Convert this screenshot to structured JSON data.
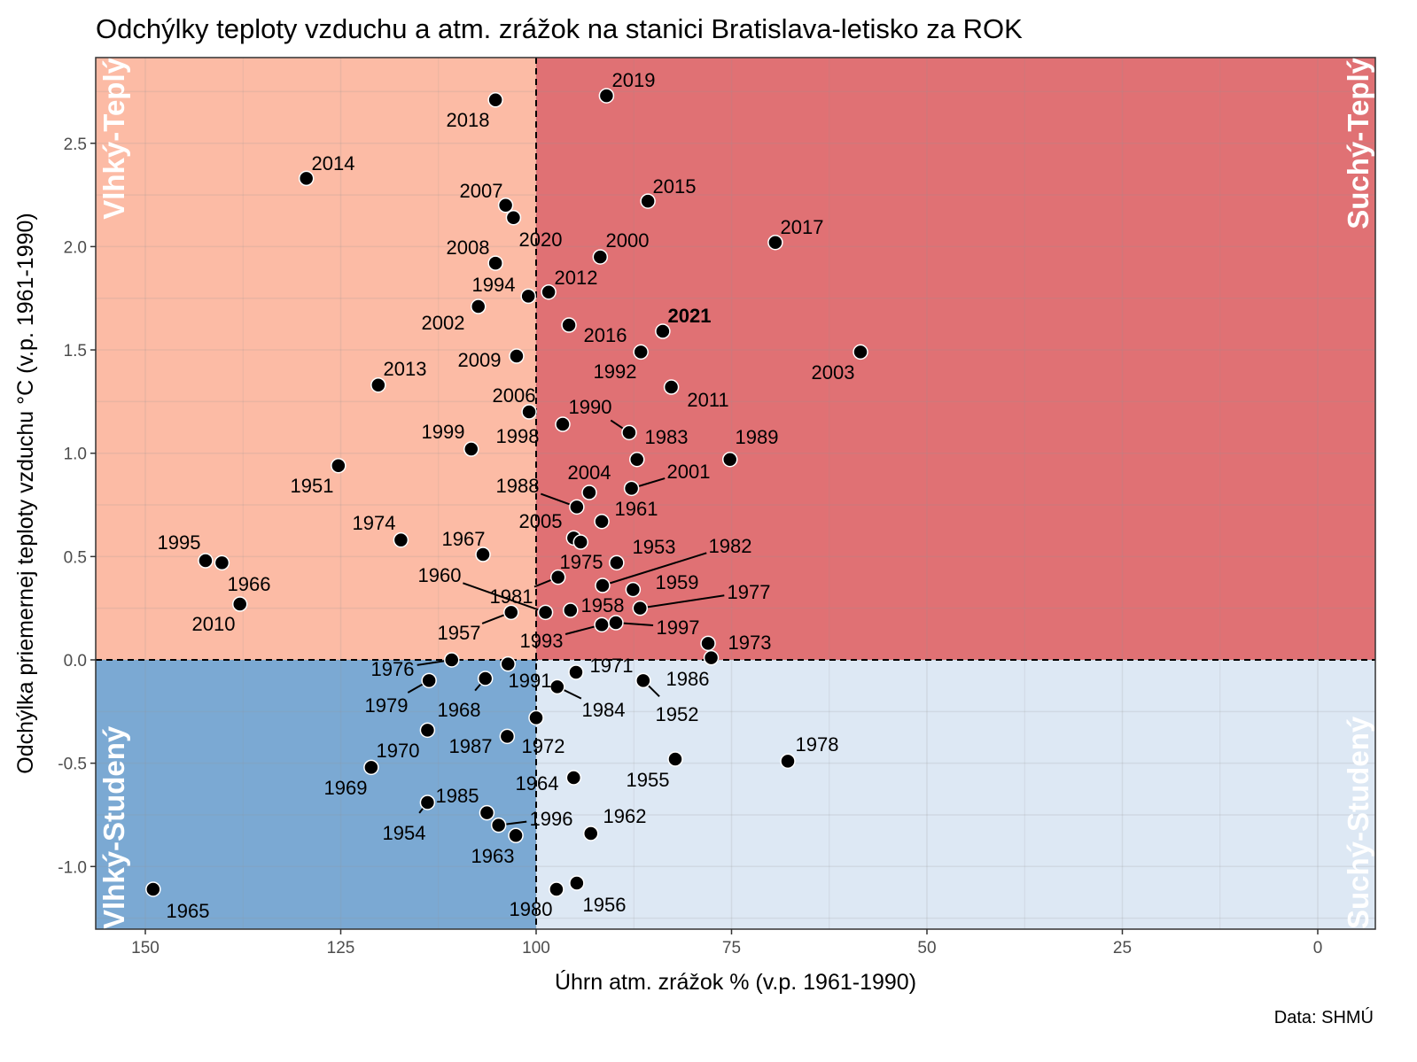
{
  "chart_data": {
    "type": "scatter",
    "title": "Odchýlky teploty vzduchu a atm. zrážok na stanici Bratislava-letisko za ROK",
    "xlabel": "Úhrn atm. zrážok % (v.p. 1961-1990)",
    "ylabel": "Odchýlka priemernej teploty vzduchu °C (v.p. 1961-1990)",
    "caption": "Data: SHMÚ",
    "x_reversed": true,
    "xlim": [
      156.4,
      -7.4
    ],
    "ylim": [
      -1.3,
      2.91
    ],
    "x_ticks": [
      150,
      125,
      100,
      75,
      50,
      25,
      0
    ],
    "y_ticks": [
      "-1.0",
      "-0.5",
      "0.0",
      "0.5",
      "1.0",
      "1.5",
      "2.0",
      "2.5"
    ],
    "reference_lines": {
      "x": 100,
      "y": 0
    },
    "quadrants": [
      {
        "label": "Vlhký-Teplý",
        "color": "#FCBBA5"
      },
      {
        "label": "Suchý-Teplý",
        "color": "#E07174"
      },
      {
        "label": "Vlhký-Studený",
        "color": "#7BA9D3"
      },
      {
        "label": "Suchý-Studený",
        "color": "#DDE8F4"
      }
    ],
    "highlight": "2021",
    "points": [
      {
        "year": "2018",
        "x": 105.2,
        "y": 2.71
      },
      {
        "year": "2019",
        "x": 91.0,
        "y": 2.73
      },
      {
        "year": "2014",
        "x": 129.4,
        "y": 2.33
      },
      {
        "year": "2007",
        "x": 103.9,
        "y": 2.2
      },
      {
        "year": "2020",
        "x": 102.9,
        "y": 2.14
      },
      {
        "year": "2015",
        "x": 85.7,
        "y": 2.22
      },
      {
        "year": "2017",
        "x": 69.4,
        "y": 2.02
      },
      {
        "year": "2008",
        "x": 105.2,
        "y": 1.92
      },
      {
        "year": "2000",
        "x": 91.8,
        "y": 1.95
      },
      {
        "year": "1994",
        "x": 101.0,
        "y": 1.76
      },
      {
        "year": "2012",
        "x": 98.4,
        "y": 1.78
      },
      {
        "year": "2002",
        "x": 107.4,
        "y": 1.71
      },
      {
        "year": "2016",
        "x": 95.8,
        "y": 1.62
      },
      {
        "year": "2021",
        "x": 83.8,
        "y": 1.59
      },
      {
        "year": "2003",
        "x": 58.5,
        "y": 1.49
      },
      {
        "year": "1992",
        "x": 86.6,
        "y": 1.49
      },
      {
        "year": "2009",
        "x": 102.5,
        "y": 1.47
      },
      {
        "year": "2013",
        "x": 120.2,
        "y": 1.33
      },
      {
        "year": "2011",
        "x": 82.7,
        "y": 1.32
      },
      {
        "year": "2006",
        "x": 100.9,
        "y": 1.2
      },
      {
        "year": "1998",
        "x": 96.6,
        "y": 1.14
      },
      {
        "year": "1990",
        "x": 88.1,
        "y": 1.1
      },
      {
        "year": "1983",
        "x": 87.1,
        "y": 0.97
      },
      {
        "year": "1999",
        "x": 108.3,
        "y": 1.02
      },
      {
        "year": "1989",
        "x": 75.2,
        "y": 0.97
      },
      {
        "year": "1951",
        "x": 125.3,
        "y": 0.94
      },
      {
        "year": "2001",
        "x": 87.8,
        "y": 0.83
      },
      {
        "year": "2004",
        "x": 93.2,
        "y": 0.81
      },
      {
        "year": "1988",
        "x": 94.8,
        "y": 0.74
      },
      {
        "year": "1961",
        "x": 91.6,
        "y": 0.67
      },
      {
        "year": "1974",
        "x": 117.3,
        "y": 0.58
      },
      {
        "year": "2005",
        "x": 95.2,
        "y": 0.59
      },
      {
        "year": "1953",
        "x": 94.3,
        "y": 0.57
      },
      {
        "year": "1967",
        "x": 106.8,
        "y": 0.51
      },
      {
        "year": "1995",
        "x": 142.3,
        "y": 0.48
      },
      {
        "year": "1966",
        "x": 140.2,
        "y": 0.47
      },
      {
        "year": "2010",
        "x": 137.9,
        "y": 0.27
      },
      {
        "year": "1975",
        "x": 89.7,
        "y": 0.47
      },
      {
        "year": "1981",
        "x": 97.2,
        "y": 0.4
      },
      {
        "year": "1982",
        "x": 91.5,
        "y": 0.36
      },
      {
        "year": "1959",
        "x": 87.6,
        "y": 0.34
      },
      {
        "year": "1977",
        "x": 86.7,
        "y": 0.25
      },
      {
        "year": "1960",
        "x": 98.8,
        "y": 0.23
      },
      {
        "year": "1958",
        "x": 95.6,
        "y": 0.24
      },
      {
        "year": "1957",
        "x": 103.2,
        "y": 0.23
      },
      {
        "year": "1993",
        "x": 91.6,
        "y": 0.17
      },
      {
        "year": "1997",
        "x": 89.8,
        "y": 0.18
      },
      {
        "year": "1973",
        "x": 78.0,
        "y": 0.08
      },
      {
        "year": "1986",
        "x": 77.6,
        "y": 0.01
      },
      {
        "year": "1976",
        "x": 110.8,
        "y": 0.0
      },
      {
        "year": "1991",
        "x": 103.6,
        "y": -0.02
      },
      {
        "year": "1971",
        "x": 94.9,
        "y": -0.06
      },
      {
        "year": "1979",
        "x": 113.7,
        "y": -0.1
      },
      {
        "year": "1968",
        "x": 106.5,
        "y": -0.09
      },
      {
        "year": "1952",
        "x": 86.3,
        "y": -0.1
      },
      {
        "year": "1984",
        "x": 97.3,
        "y": -0.13
      },
      {
        "year": "1972",
        "x": 100.0,
        "y": -0.28
      },
      {
        "year": "1970",
        "x": 113.9,
        "y": -0.34
      },
      {
        "year": "1987",
        "x": 103.7,
        "y": -0.37
      },
      {
        "year": "1955",
        "x": 82.2,
        "y": -0.48
      },
      {
        "year": "1978",
        "x": 67.8,
        "y": -0.49
      },
      {
        "year": "1969",
        "x": 121.1,
        "y": -0.52
      },
      {
        "year": "1964",
        "x": 95.2,
        "y": -0.57
      },
      {
        "year": "1954",
        "x": 113.9,
        "y": -0.69
      },
      {
        "year": "1985",
        "x": 106.3,
        "y": -0.74
      },
      {
        "year": "1996",
        "x": 104.8,
        "y": -0.8
      },
      {
        "year": "1963",
        "x": 102.6,
        "y": -0.85
      },
      {
        "year": "1962",
        "x": 93.0,
        "y": -0.84
      },
      {
        "year": "1965",
        "x": 149.0,
        "y": -1.11
      },
      {
        "year": "1980",
        "x": 97.4,
        "y": -1.11
      },
      {
        "year": "1956",
        "x": 94.8,
        "y": -1.08
      }
    ]
  }
}
